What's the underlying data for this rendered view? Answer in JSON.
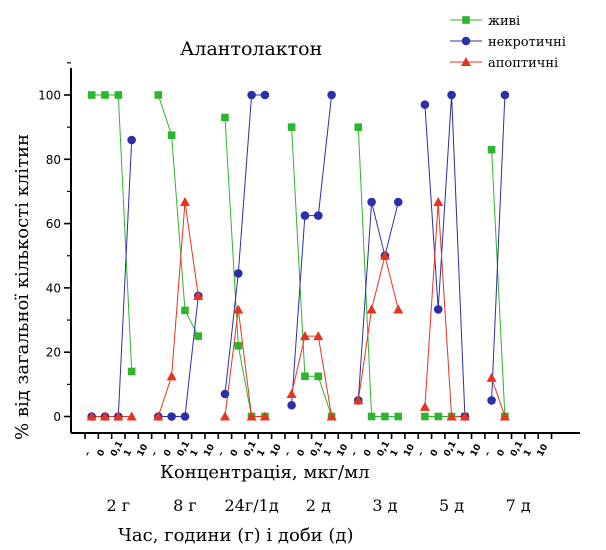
{
  "chart_data": {
    "type": "line",
    "title": "Алантолактон",
    "xlabel": "Концентрація, мкг/мл",
    "ylabel": "% від загальної кількості клітин",
    "secondary_xlabel": "Час, години (г) і доби (д)",
    "ylim": [
      -5,
      110
    ],
    "yticks": [
      "0",
      "20",
      "40",
      "60",
      "80",
      "100"
    ],
    "grid": false,
    "legend_position": "top-right",
    "groups": [
      "2 г",
      "8 г",
      "24г/1д",
      "2 д",
      "3 д",
      "5 д",
      "7 д"
    ],
    "concentration_ticks": [
      "–",
      "0",
      "0,1",
      "1",
      "10"
    ],
    "x": [
      "2 г –",
      "2 г 0",
      "2 г 0,1",
      "2 г 1",
      "2 г 10",
      "8 г –",
      "8 г 0",
      "8 г 0,1",
      "8 г 1",
      "8 г 10",
      "24г/1д –",
      "24г/1д 0",
      "24г/1д 0,1",
      "24г/1д 1",
      "24г/1д 10",
      "2 д –",
      "2 д 0",
      "2 д 0,1",
      "2 д 1",
      "2 д 10",
      "3 д –",
      "3 д 0",
      "3 д 0,1",
      "3 д 1",
      "3 д 10",
      "5 д –",
      "5 д 0",
      "5 д 0,1",
      "5 д 1",
      "5 д 10",
      "7 д –",
      "7 д 0",
      "7 д 0,1",
      "7 д 1",
      "7 д 10"
    ],
    "series": [
      {
        "name": "живі",
        "color": "#2db52d",
        "marker": "square",
        "segments": [
          [
            [
              0.5,
              100
            ],
            [
              1.5,
              100
            ],
            [
              2.5,
              100
            ],
            [
              3.5,
              14
            ]
          ],
          [
            [
              5.5,
              100
            ],
            [
              6.5,
              87.5
            ],
            [
              7.5,
              33
            ],
            [
              8.5,
              25
            ]
          ],
          [
            [
              10.5,
              93
            ],
            [
              11.5,
              22
            ],
            [
              12.5,
              0
            ],
            [
              13.5,
              0
            ]
          ],
          [
            [
              15.5,
              90
            ],
            [
              16.5,
              12.5
            ],
            [
              17.5,
              12.5
            ],
            [
              18.5,
              0
            ]
          ],
          [
            [
              20.5,
              90
            ],
            [
              21.5,
              0
            ],
            [
              22.5,
              0
            ],
            [
              23.5,
              0
            ]
          ],
          [
            [
              25.5,
              0
            ],
            [
              26.5,
              0
            ],
            [
              27.5,
              0
            ],
            [
              28.5,
              0
            ]
          ],
          [
            [
              30.5,
              83
            ],
            [
              31.5,
              0
            ]
          ]
        ]
      },
      {
        "name": "некротичні",
        "color": "#2b2fa8",
        "marker": "circle",
        "segments": [
          [
            [
              0.5,
              0
            ],
            [
              1.5,
              0
            ],
            [
              2.5,
              0
            ],
            [
              3.5,
              86
            ]
          ],
          [
            [
              5.5,
              0
            ],
            [
              6.5,
              0
            ],
            [
              7.5,
              0
            ],
            [
              8.5,
              37.5
            ]
          ],
          [
            [
              10.5,
              7
            ],
            [
              11.5,
              44.5
            ],
            [
              12.5,
              100
            ],
            [
              13.5,
              100
            ]
          ],
          [
            [
              15.5,
              3.5
            ],
            [
              16.5,
              62.5
            ],
            [
              17.5,
              62.5
            ],
            [
              18.5,
              100
            ]
          ],
          [
            [
              20.5,
              5
            ],
            [
              21.5,
              66.7
            ],
            [
              22.5,
              50
            ],
            [
              23.5,
              66.7
            ]
          ],
          [
            [
              25.5,
              97
            ],
            [
              26.5,
              33.3
            ],
            [
              27.5,
              100
            ],
            [
              28.5,
              0
            ]
          ],
          [
            [
              30.5,
              5
            ],
            [
              31.5,
              100
            ]
          ]
        ]
      },
      {
        "name": "апоптичні",
        "color": "#e8341c",
        "marker": "triangle",
        "segments": [
          [
            [
              0.5,
              0
            ],
            [
              1.5,
              0
            ],
            [
              2.5,
              0
            ],
            [
              3.5,
              0
            ]
          ],
          [
            [
              5.5,
              0
            ],
            [
              6.5,
              12.5
            ],
            [
              7.5,
              66.7
            ],
            [
              8.5,
              37.5
            ]
          ],
          [
            [
              10.5,
              0
            ],
            [
              11.5,
              33.3
            ],
            [
              12.5,
              0
            ],
            [
              13.5,
              0
            ]
          ],
          [
            [
              15.5,
              7
            ],
            [
              16.5,
              25
            ],
            [
              17.5,
              25
            ],
            [
              18.5,
              0
            ]
          ],
          [
            [
              20.5,
              5
            ],
            [
              21.5,
              33.3
            ],
            [
              22.5,
              50
            ],
            [
              23.5,
              33.3
            ]
          ],
          [
            [
              25.5,
              3
            ],
            [
              26.5,
              66.7
            ],
            [
              27.5,
              0
            ],
            [
              28.5,
              0
            ]
          ],
          [
            [
              30.5,
              12
            ],
            [
              31.5,
              0
            ]
          ]
        ]
      }
    ]
  }
}
